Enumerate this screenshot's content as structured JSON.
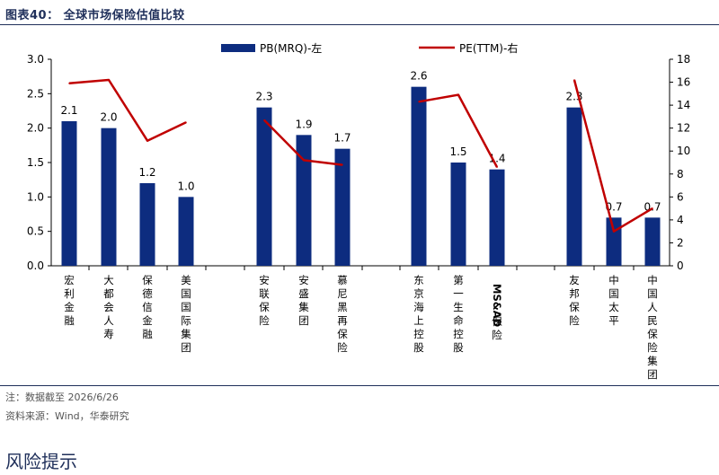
{
  "figure_title": "图表40：  全球市场保险估值比较",
  "notes": {
    "note": "注：数据截至 2026/6/26",
    "source": "资料来源：Wind，华泰研究"
  },
  "section_heading": "风险提示",
  "chart_data": {
    "type": "bar",
    "categories": [
      "宏利金融",
      "大都会人寿",
      "保德信金融",
      "美国国际集团",
      "安联保险",
      "安盛集团",
      "慕尼黑再保险",
      "东京海上控股",
      "第一生命控股",
      "MS&AD保险",
      "友邦保险",
      "中国太平",
      "中国人民保险集团"
    ],
    "groups": [
      [
        0,
        1,
        2,
        3
      ],
      [
        4,
        5,
        6
      ],
      [
        7,
        8,
        9
      ],
      [
        10,
        11,
        12
      ]
    ],
    "series": [
      {
        "name": "PB(MRQ)-左",
        "type": "bar",
        "axis": "left",
        "color": "#0d2c7f",
        "values": [
          2.1,
          2.0,
          1.2,
          1.0,
          2.3,
          1.9,
          1.7,
          2.6,
          1.5,
          1.4,
          2.3,
          0.7,
          0.7
        ],
        "labels": [
          "2.1",
          "2.0",
          "1.2",
          "1.0",
          "2.3",
          "1.9",
          "1.7",
          "2.6",
          "1.5",
          "1.4",
          "2.3",
          "0.7",
          "0.7"
        ]
      },
      {
        "name": "PE(TTM)-右",
        "type": "line",
        "axis": "right",
        "color": "#c00000",
        "values": [
          15.9,
          16.2,
          10.9,
          12.5,
          12.7,
          9.2,
          8.8,
          14.3,
          14.9,
          8.6,
          16.2,
          3.0,
          5.0
        ]
      }
    ],
    "y_left": {
      "min": 0,
      "max": 3.0,
      "step": 0.5,
      "ticks": [
        "0.0",
        "0.5",
        "1.0",
        "1.5",
        "2.0",
        "2.5",
        "3.0"
      ]
    },
    "y_right": {
      "min": 0,
      "max": 18,
      "step": 2,
      "ticks": [
        "0",
        "2",
        "4",
        "6",
        "8",
        "10",
        "12",
        "14",
        "16",
        "18"
      ]
    },
    "legend_position": "top",
    "grid": false
  }
}
